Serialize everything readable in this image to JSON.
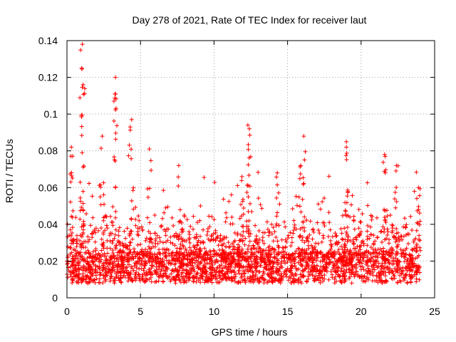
{
  "chart_data": {
    "type": "scatter",
    "title": "Day 278 of 2021, Rate Of TEC Index for receiver laut",
    "xlabel": "GPS time / hours",
    "ylabel": "ROTI / TECUs",
    "xlim": [
      0,
      25
    ],
    "ylim": [
      0,
      0.14
    ],
    "x_ticks": [
      0,
      5,
      10,
      15,
      20,
      25
    ],
    "y_ticks": [
      0,
      0.02,
      0.04,
      0.06,
      0.08,
      0.1,
      0.12,
      0.14
    ],
    "x_tick_labels": [
      "0",
      "5",
      "10",
      "15",
      "20",
      "25"
    ],
    "y_tick_labels": [
      "0",
      "0.02",
      "0.04",
      "0.06",
      "0.08",
      "0.1",
      "0.12",
      "0.14"
    ],
    "grid": true,
    "marker": "plus",
    "marker_color": "#ff0000",
    "time_range_hours": [
      0,
      24
    ],
    "baseline_band": [
      0.008,
      0.025
    ],
    "notable_points": [
      {
        "x": 1.05,
        "y": 0.138
      },
      {
        "x": 1.0,
        "y": 0.125
      },
      {
        "x": 1.1,
        "y": 0.116
      },
      {
        "x": 3.3,
        "y": 0.12
      },
      {
        "x": 3.3,
        "y": 0.111
      },
      {
        "x": 4.4,
        "y": 0.097
      },
      {
        "x": 4.3,
        "y": 0.093
      },
      {
        "x": 12.3,
        "y": 0.094
      },
      {
        "x": 12.4,
        "y": 0.092
      },
      {
        "x": 16.1,
        "y": 0.088
      },
      {
        "x": 19.0,
        "y": 0.085
      },
      {
        "x": 19.0,
        "y": 0.082
      },
      {
        "x": 0.3,
        "y": 0.082
      },
      {
        "x": 2.4,
        "y": 0.088
      },
      {
        "x": 5.6,
        "y": 0.081
      },
      {
        "x": 21.6,
        "y": 0.078
      },
      {
        "x": 15.9,
        "y": 0.072
      },
      {
        "x": 22.4,
        "y": 0.072
      },
      {
        "x": 7.6,
        "y": 0.072
      },
      {
        "x": 14.3,
        "y": 0.068
      },
      {
        "x": 11.9,
        "y": 0.066
      },
      {
        "x": 23.9,
        "y": 0.06
      }
    ]
  }
}
